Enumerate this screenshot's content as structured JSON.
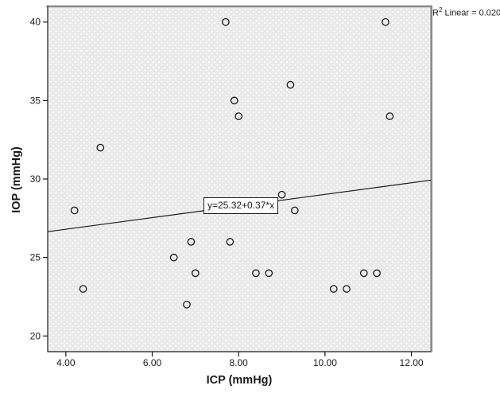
{
  "chart_data": {
    "type": "scatter",
    "title": "",
    "xlabel": "ICP (mmHg)",
    "ylabel": "IOP (mmHg)",
    "xlim": [
      3.58,
      12.45
    ],
    "ylim": [
      19,
      41
    ],
    "grid": false,
    "marker": "open-circle",
    "x_ticks": [
      {
        "v": 4,
        "label": "4.00"
      },
      {
        "v": 6,
        "label": "6.00"
      },
      {
        "v": 8,
        "label": "8.00"
      },
      {
        "v": 10,
        "label": "10.00"
      },
      {
        "v": 12,
        "label": "12.00"
      }
    ],
    "y_ticks": [
      {
        "v": 20,
        "label": "20"
      },
      {
        "v": 25,
        "label": "25"
      },
      {
        "v": 30,
        "label": "30"
      },
      {
        "v": 35,
        "label": "35"
      },
      {
        "v": 40,
        "label": "40"
      }
    ],
    "points": [
      [
        4.2,
        28
      ],
      [
        4.4,
        23
      ],
      [
        4.8,
        32
      ],
      [
        6.5,
        25
      ],
      [
        6.8,
        22
      ],
      [
        6.9,
        26
      ],
      [
        7.0,
        24
      ],
      [
        7.7,
        40
      ],
      [
        7.8,
        26
      ],
      [
        7.9,
        35
      ],
      [
        8.0,
        34
      ],
      [
        8.4,
        24
      ],
      [
        8.7,
        24
      ],
      [
        9.0,
        29
      ],
      [
        9.2,
        36
      ],
      [
        9.3,
        28
      ],
      [
        10.2,
        23
      ],
      [
        10.5,
        23
      ],
      [
        10.9,
        24
      ],
      [
        11.2,
        24
      ],
      [
        11.4,
        40
      ],
      [
        11.5,
        34
      ]
    ],
    "regression": {
      "label": "y=25.32+0.37*x",
      "intercept": 25.32,
      "slope": 0.37,
      "r2": 0.02
    },
    "annotation_r2": {
      "prefix": "R",
      "sup": "2",
      "rest": " Linear = 0.020"
    },
    "colors": {
      "plot_bg": "#eaeaea",
      "marker_stroke": "#1a1a1a",
      "line": "#1a1a1a",
      "frame_shadow": "#8a8a8a"
    }
  }
}
